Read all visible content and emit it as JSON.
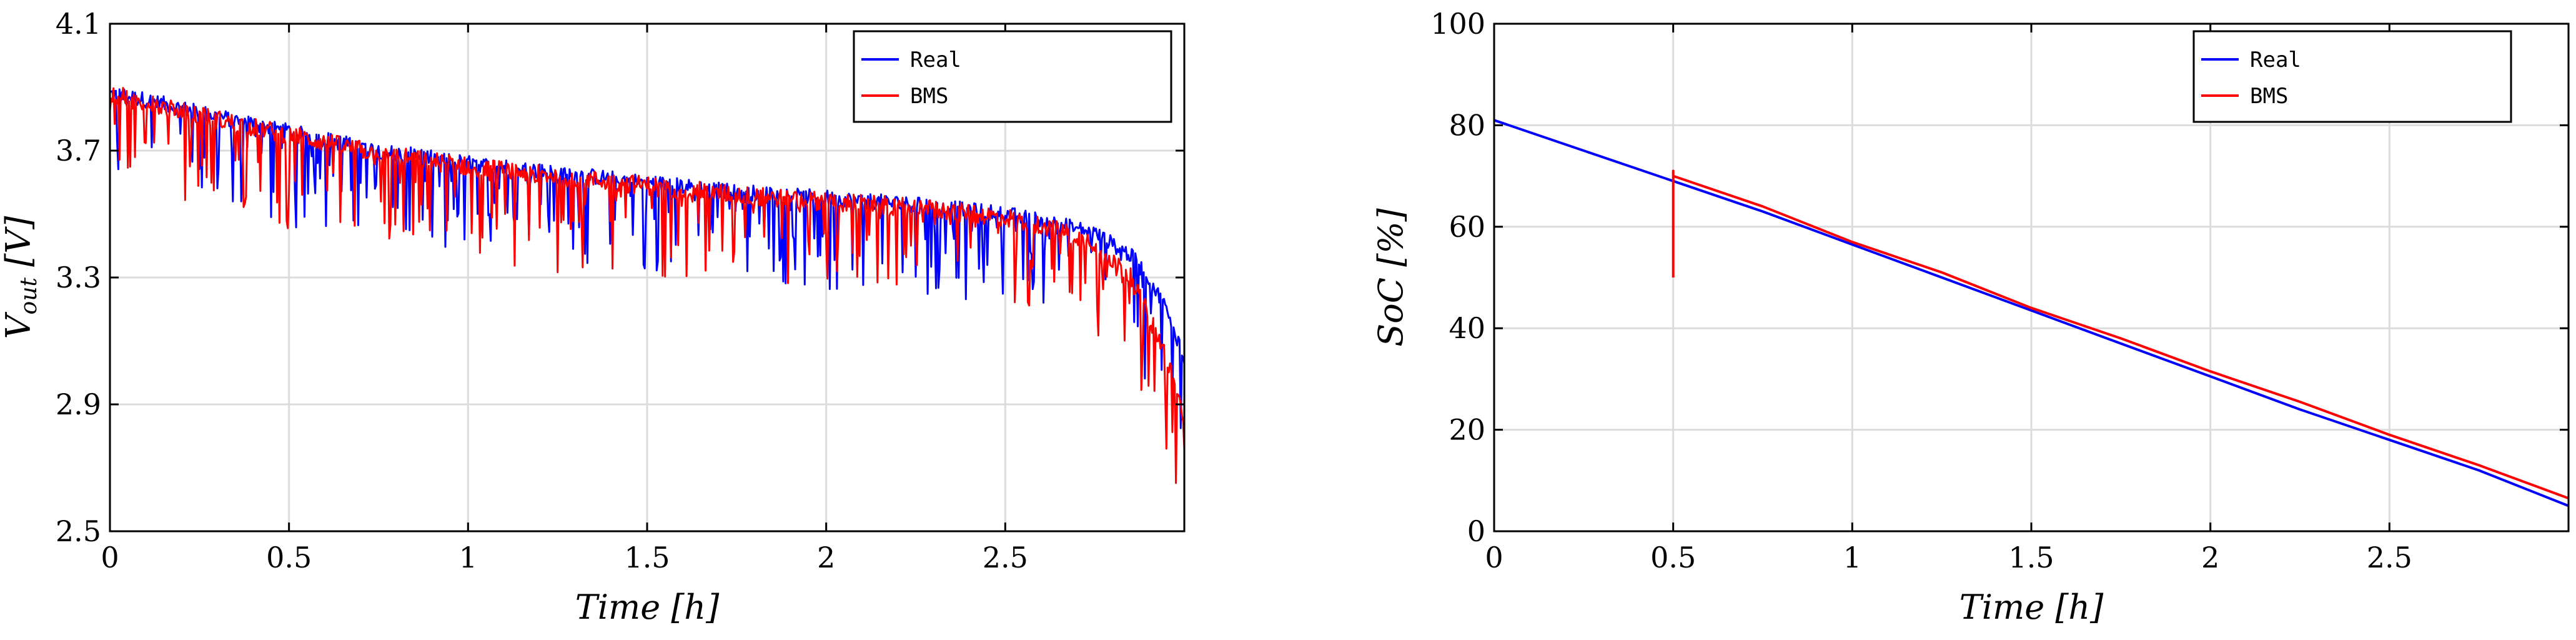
{
  "chart_data": [
    {
      "type": "line",
      "xlabel": "Time [h]",
      "ylabel_main": "V",
      "ylabel_sub": "out",
      "ylabel_unit": "[V]",
      "xlim": [
        0,
        3
      ],
      "ylim": [
        2.5,
        4.1
      ],
      "xticks": [
        0,
        0.5,
        1,
        1.5,
        2,
        2.5
      ],
      "xtick_labels": [
        "0",
        "0.5",
        "1",
        "1.5",
        "2",
        "2.5"
      ],
      "yticks": [
        2.5,
        2.9,
        3.3,
        3.7,
        4.1
      ],
      "ytick_labels": [
        "2.5",
        "2.9",
        "3.3",
        "3.7",
        "4.1"
      ],
      "grid": true,
      "legend": "top-right",
      "series": [
        {
          "name": "Real",
          "color": "#0000ff",
          "x": [
            0,
            0.1,
            0.25,
            0.5,
            0.75,
            1.0,
            1.25,
            1.5,
            1.75,
            2.0,
            2.25,
            2.5,
            2.65,
            2.75,
            2.85,
            2.9,
            2.95,
            3.0
          ],
          "y": [
            3.88,
            3.86,
            3.82,
            3.76,
            3.7,
            3.66,
            3.63,
            3.6,
            3.57,
            3.55,
            3.53,
            3.5,
            3.47,
            3.44,
            3.37,
            3.3,
            3.2,
            3.05
          ]
        },
        {
          "name": "BMS",
          "color": "#ff0000",
          "x": [
            0,
            0.1,
            0.25,
            0.5,
            0.75,
            1.0,
            1.25,
            1.5,
            1.75,
            2.0,
            2.25,
            2.5,
            2.65,
            2.75,
            2.85,
            2.9,
            2.95,
            3.0
          ],
          "y": [
            3.88,
            3.85,
            3.81,
            3.75,
            3.69,
            3.65,
            3.62,
            3.59,
            3.56,
            3.54,
            3.52,
            3.49,
            3.45,
            3.41,
            3.3,
            3.18,
            3.05,
            2.85
          ]
        }
      ]
    },
    {
      "type": "line",
      "xlabel": "Time [h]",
      "ylabel": "SoC [%]",
      "xlim": [
        0,
        3
      ],
      "ylim": [
        0,
        100
      ],
      "xticks": [
        0,
        0.5,
        1,
        1.5,
        2,
        2.5
      ],
      "xtick_labels": [
        "0",
        "0.5",
        "1",
        "1.5",
        "2",
        "2.5"
      ],
      "yticks": [
        0,
        20,
        40,
        60,
        80,
        100
      ],
      "ytick_labels": [
        "0",
        "20",
        "40",
        "60",
        "80",
        "100"
      ],
      "grid": true,
      "legend": "top-right",
      "series": [
        {
          "name": "Real",
          "color": "#0000ff",
          "x": [
            0,
            0.25,
            0.5,
            0.75,
            1.0,
            1.25,
            1.5,
            1.75,
            2.0,
            2.25,
            2.5,
            2.75,
            3.0
          ],
          "y": [
            81,
            75,
            69,
            63,
            56.5,
            50,
            43.5,
            37,
            30.5,
            24,
            18,
            12,
            5
          ]
        },
        {
          "name": "BMS",
          "color": "#ff0000",
          "x": [
            0.5,
            0.5,
            0.5,
            0.75,
            1.0,
            1.25,
            1.5,
            1.75,
            2.0,
            2.25,
            2.5,
            2.75,
            3.0
          ],
          "y": [
            50,
            71,
            70,
            64,
            57,
            51,
            44,
            38,
            31.5,
            25.5,
            19,
            13,
            6.5
          ]
        }
      ]
    }
  ]
}
